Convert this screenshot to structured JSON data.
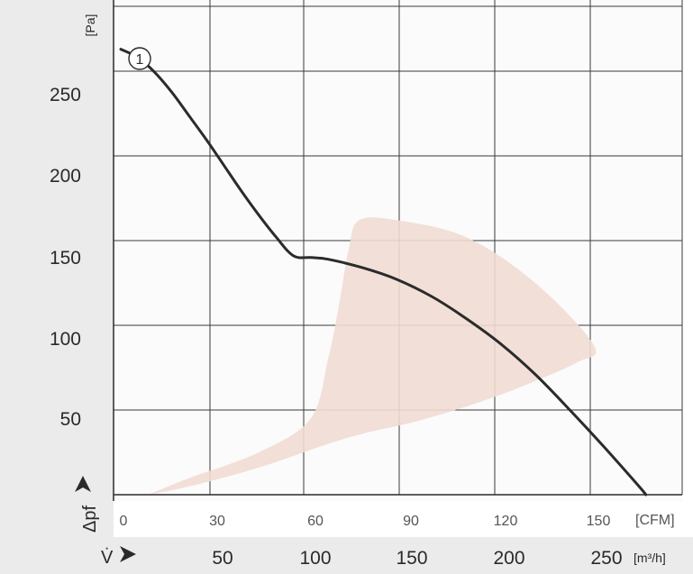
{
  "chart_data": {
    "type": "line",
    "x_cfm_ticks": [
      "0",
      "30",
      "60",
      "90",
      "120",
      "150"
    ],
    "x_cfm_unit": "[CFM]",
    "x_m3h_ticks": [
      "50",
      "100",
      "150",
      "200",
      "250"
    ],
    "x_m3h_unit": "[m³/h]",
    "x_m3h_symbol": "V̇",
    "y_ticks": [
      "50",
      "100",
      "150",
      "200",
      "250"
    ],
    "y_unit": "[Pa]",
    "y_symbol": "Δpf",
    "xlim_cfm": [
      0,
      165
    ],
    "ylim_pa": [
      0,
      290
    ],
    "grid": true,
    "series": [
      {
        "name": "1",
        "color": "#2b2b2b",
        "points_cfm_pa": [
          [
            0,
            263
          ],
          [
            5,
            258
          ],
          [
            10,
            249
          ],
          [
            15,
            237
          ],
          [
            20,
            223
          ],
          [
            25,
            209
          ],
          [
            30,
            194
          ],
          [
            35,
            179
          ],
          [
            40,
            165
          ],
          [
            45,
            152
          ],
          [
            50,
            141
          ],
          [
            55,
            140
          ],
          [
            60,
            139
          ],
          [
            70,
            134
          ],
          [
            80,
            127
          ],
          [
            90,
            117
          ],
          [
            100,
            104
          ],
          [
            110,
            89
          ],
          [
            120,
            71
          ],
          [
            130,
            50
          ],
          [
            140,
            28
          ],
          [
            150,
            5
          ],
          [
            152,
            0
          ]
        ]
      }
    ],
    "shaded_region": {
      "color": "#f1ddd4",
      "points_cfm_pa": [
        [
          8,
          0
        ],
        [
          20,
          10
        ],
        [
          40,
          25
        ],
        [
          55,
          45
        ],
        [
          60,
          80
        ],
        [
          63,
          110
        ],
        [
          66,
          145
        ],
        [
          69,
          162
        ],
        [
          80,
          162
        ],
        [
          100,
          152
        ],
        [
          120,
          125
        ],
        [
          137,
          88
        ],
        [
          132,
          78
        ],
        [
          115,
          63
        ],
        [
          100,
          52
        ],
        [
          85,
          43
        ],
        [
          72,
          37
        ],
        [
          60,
          30
        ],
        [
          40,
          16
        ],
        [
          20,
          5
        ],
        [
          8,
          0
        ]
      ]
    }
  }
}
